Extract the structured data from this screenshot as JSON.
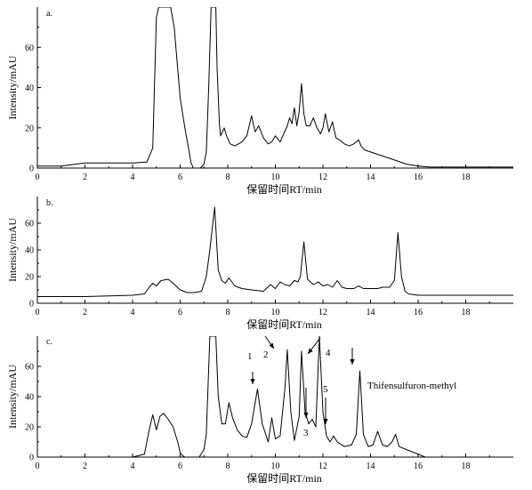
{
  "chart_data": [
    {
      "type": "line",
      "panel_label": "a.",
      "xlabel": "保留时间RT/min",
      "ylabel": "Intensity/mAU",
      "xlim": [
        0,
        20
      ],
      "ylim": [
        0,
        80
      ],
      "xticks": [
        0,
        2,
        4,
        6,
        8,
        10,
        12,
        14,
        16,
        18
      ],
      "yticks": [
        0,
        20,
        40,
        60
      ],
      "grid": false,
      "series": [
        {
          "x": [
            0,
            1,
            2,
            3,
            4,
            4.6,
            4.85,
            5.0,
            5.1,
            5.6,
            5.75,
            6.0,
            6.2,
            6.35,
            6.45,
            6.55,
            6.65,
            6.85,
            7.0,
            7.1,
            7.2,
            7.3,
            7.5,
            7.55,
            7.65,
            7.7,
            7.85,
            7.95,
            8.1,
            8.3,
            8.6,
            8.8,
            9.0,
            9.15,
            9.3,
            9.5,
            9.7,
            9.85,
            10.0,
            10.2,
            10.35,
            10.5,
            10.6,
            10.7,
            10.8,
            10.9,
            11.0,
            11.1,
            11.2,
            11.3,
            11.45,
            11.6,
            11.75,
            11.9,
            12.0,
            12.1,
            12.25,
            12.4,
            12.55,
            12.7,
            12.9,
            13.1,
            13.3,
            13.5,
            13.6,
            13.75,
            14,
            14.5,
            15,
            15.5,
            16,
            16.5,
            17,
            18,
            20
          ],
          "y": [
            1,
            1,
            2.5,
            2.5,
            2.5,
            3,
            10,
            75,
            80,
            80,
            70,
            35,
            20,
            10,
            3,
            0,
            0,
            0,
            2,
            8,
            40,
            80,
            80,
            50,
            22,
            16,
            20,
            16,
            12,
            11,
            13,
            16,
            26,
            18,
            21,
            15,
            12,
            13,
            16,
            13,
            17,
            21,
            25,
            22,
            30,
            21,
            28,
            42,
            27,
            21,
            21,
            25,
            20,
            17,
            20,
            27,
            18,
            23,
            15,
            14,
            12,
            11,
            12,
            14,
            11,
            9,
            8,
            6,
            4,
            2,
            1,
            0.5,
            0.5,
            0.5,
            0.5
          ]
        }
      ]
    },
    {
      "type": "line",
      "panel_label": "b.",
      "xlabel": "保留时间RT/min",
      "ylabel": "Intensity/mAU",
      "xlim": [
        0,
        20
      ],
      "ylim": [
        0,
        80
      ],
      "xticks": [
        0,
        2,
        4,
        6,
        8,
        10,
        12,
        14,
        16,
        18
      ],
      "yticks": [
        0,
        20,
        40,
        60
      ],
      "grid": false,
      "series": [
        {
          "x": [
            0,
            1,
            2,
            3,
            4,
            4.5,
            4.7,
            4.85,
            5.0,
            5.2,
            5.5,
            5.7,
            6.0,
            6.3,
            6.6,
            6.9,
            7.1,
            7.25,
            7.45,
            7.6,
            7.75,
            7.9,
            8.05,
            8.3,
            8.6,
            9.0,
            9.5,
            9.8,
            10.0,
            10.2,
            10.4,
            10.6,
            10.8,
            10.95,
            11.05,
            11.2,
            11.35,
            11.6,
            11.8,
            12.0,
            12.2,
            12.4,
            12.6,
            12.8,
            13.0,
            13.3,
            13.5,
            13.7,
            14.0,
            14.3,
            14.5,
            14.8,
            15.0,
            15.15,
            15.3,
            15.45,
            15.6,
            16,
            16.5,
            17,
            18,
            20
          ],
          "y": [
            5,
            5,
            5,
            5.5,
            6,
            7,
            12,
            15,
            13,
            17,
            18,
            15,
            10,
            8,
            8,
            9,
            20,
            40,
            72,
            25,
            17,
            15,
            19,
            13,
            11,
            10,
            9,
            14,
            11,
            16,
            14,
            13,
            17,
            16,
            20,
            46,
            18,
            14,
            16,
            13,
            14,
            12,
            17,
            12,
            11,
            11,
            13,
            11,
            11,
            11,
            12,
            12,
            17,
            53,
            20,
            9,
            7,
            6,
            6,
            6,
            6,
            6
          ]
        }
      ]
    },
    {
      "type": "line",
      "panel_label": "c.",
      "xlabel": "保留时间RT/min",
      "ylabel": "Intensity/mAU",
      "xlim": [
        0,
        20
      ],
      "ylim": [
        0,
        80
      ],
      "xticks": [
        0,
        2,
        4,
        6,
        8,
        10,
        12,
        14,
        16,
        18
      ],
      "yticks": [
        0,
        20,
        40,
        60
      ],
      "grid": false,
      "series": [
        {
          "x": [
            0,
            2,
            2.5,
            3,
            4,
            4.5,
            4.7,
            4.85,
            5.0,
            5.15,
            5.3,
            5.5,
            5.7,
            5.9,
            6.0,
            6.1,
            6.2,
            6.5,
            6.8,
            7.0,
            7.1,
            7.25,
            7.35,
            7.5,
            7.6,
            7.75,
            7.9,
            8.05,
            8.2,
            8.4,
            8.6,
            8.8,
            9.0,
            9.25,
            9.45,
            9.7,
            9.85,
            10.0,
            10.2,
            10.4,
            10.5,
            10.65,
            10.8,
            11.0,
            11.1,
            11.25,
            11.4,
            11.55,
            11.7,
            11.85,
            12.0,
            12.15,
            12.3,
            12.45,
            12.6,
            12.9,
            13.2,
            13.4,
            13.55,
            13.7,
            13.9,
            14.1,
            14.3,
            14.5,
            14.7,
            14.9,
            15.05,
            15.2,
            15.5,
            16.0,
            16.3,
            20
          ],
          "y": [
            0,
            0,
            0,
            0,
            0,
            2,
            18,
            28,
            18,
            27,
            29,
            25,
            20,
            10,
            3,
            1,
            0,
            0,
            0,
            5,
            15,
            80,
            80,
            80,
            40,
            22,
            22,
            36,
            26,
            18,
            14,
            13,
            22,
            45,
            22,
            10,
            26,
            12,
            14,
            45,
            71,
            30,
            11,
            27,
            70,
            30,
            22,
            25,
            20,
            80,
            30,
            14,
            10,
            14,
            10,
            7,
            8,
            15,
            57,
            15,
            7,
            8,
            17,
            8,
            7,
            10,
            15,
            7,
            5,
            2,
            0,
            0
          ]
        }
      ],
      "annotations": [
        "1",
        "2",
        "3",
        "4",
        "5",
        "Thifensulfuron-methyl"
      ]
    }
  ]
}
